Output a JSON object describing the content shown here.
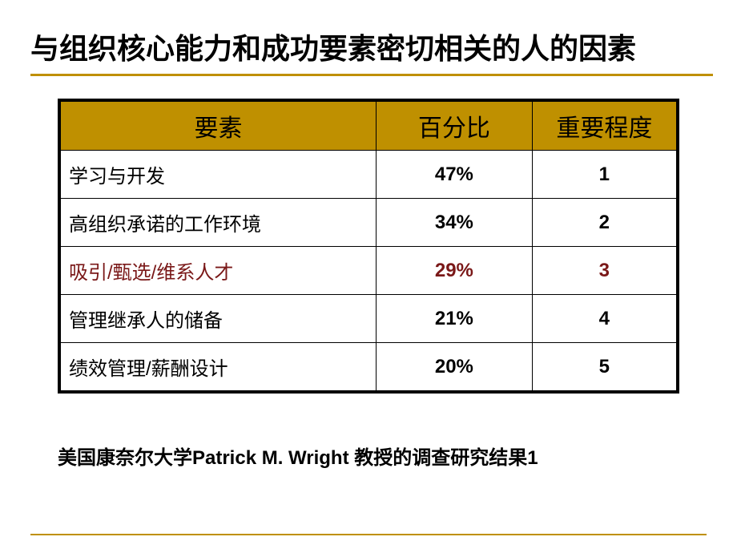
{
  "title": "与组织核心能力和成功要素密切相关的人的因素",
  "accent_color": "#bf9000",
  "highlight_color": "#7a1818",
  "table": {
    "headers": [
      "要素",
      "百分比",
      "重要程度"
    ],
    "rows": [
      {
        "label": "学习与开发",
        "percent": "47%",
        "rank": "1",
        "highlight": false
      },
      {
        "label": "高组织承诺的工作环境",
        "percent": "34%",
        "rank": "2",
        "highlight": false
      },
      {
        "label": "吸引/甄选/维系人才",
        "percent": "29%",
        "rank": "3",
        "highlight": true
      },
      {
        "label": "管理继承人的储备",
        "percent": "21%",
        "rank": "4",
        "highlight": false
      },
      {
        "label": "绩效管理/薪酬设计",
        "percent": "20%",
        "rank": "5",
        "highlight": false
      }
    ]
  },
  "footnote": "美国康奈尔大学Patrick M. Wright 教授的调查研究结果1"
}
